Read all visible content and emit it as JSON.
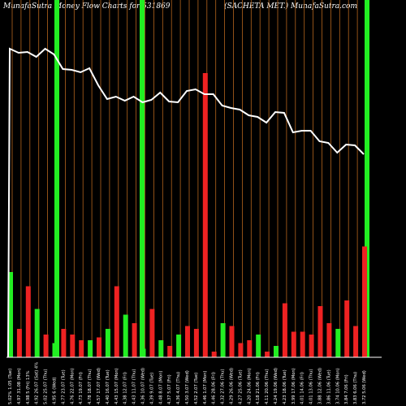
{
  "header": {
    "left": "MunafaSutra Money Flow  Charts for 531869",
    "right": "(SACHETA MET.) MunafaSutra.com"
  },
  "colors": {
    "background": "#000000",
    "up": "#22ee22",
    "down": "#ee2222",
    "gridline": "#b5651d",
    "line": "#ffffff",
    "highlight": "#22ee22",
    "axis": "#ffffff"
  },
  "chart_data": {
    "type": "bar",
    "title": "MunafaSutra Money Flow  Charts for 531869",
    "subtitle": "(SACHETA MET.) MunafaSutra.com",
    "categories": [
      "5.02% 1.05 (Tue)",
      "4.97 31.08 (Mon)",
      "4.98 5 (Fri) 13%",
      "4.92 26.07 (Sat) 4%",
      "5.02 25.07 (Thu)",
      "4.95 6 (Wed)",
      "4.77 23.07 (Tue)",
      "4.76 22.07 (Mon)",
      "4.73 19.07 (Fri)",
      "4.78 18.07 (Thu)",
      "4.57 17.07 (Wed)",
      "4.40 16.07 (Tue)",
      "4.43 15.07 (Mon)",
      "4.38 12.07 (Fri)",
      "4.43 11.07 (Thu)",
      "4.36 10.07 (Wed)",
      "4.39 9.07 (Tue)",
      "4.48 8.07 (Mon)",
      "4.37 5.07 (Fri)",
      "4.36 4.07 (Thu)",
      "4.50 3.07 (Wed)",
      "4.52 2.07 (Tue)",
      "4.46 1.07 (Mon)",
      "4.46 28.06 (Fri)",
      "4.32 27.06 (Thu)",
      "4.29 26.06 (Wed)",
      "4.27 25.06 (Tue)",
      "4.20 24.06 (Mon)",
      "4.18 21.06 (Fri)",
      "4.11 20.06 (Thu)",
      "4.24 19.06 (Wed)",
      "4.23 18.06 (Tue)",
      "3.99 17.06 (Mon)",
      "4.01 14.06 (Fri)",
      "4.01 13.06 (Thu)",
      "3.88 12.06 (Wed)",
      "3.86 11.06 (Tue)",
      "3.74 10.06 (Mon)",
      "3.84 7.06 (Fri)",
      "3.83 6.06 (Thu)",
      "3.72 5.06 (Wed)"
    ],
    "series": [
      {
        "colors": [
          "up",
          "down",
          "down",
          "up",
          "down",
          "up",
          "down",
          "down",
          "down",
          "up",
          "down",
          "up",
          "down",
          "up",
          "down",
          "up",
          "down",
          "up",
          "down",
          "up",
          "down",
          "down",
          "down",
          "down",
          "up",
          "down",
          "down",
          "down",
          "up",
          "down",
          "up",
          "down",
          "down",
          "down",
          "down",
          "down",
          "down",
          "up",
          "down",
          "down",
          "down"
        ],
        "values": [
          30,
          10,
          25,
          17,
          8,
          5,
          10,
          8,
          6,
          6,
          7,
          10,
          25,
          15,
          12,
          3,
          17,
          6,
          4,
          8,
          11,
          10,
          100,
          2,
          12,
          11,
          5,
          6,
          8,
          2,
          4,
          19,
          9,
          9,
          8,
          18,
          12,
          10,
          20,
          11,
          39
        ]
      },
      {
        "name": "price",
        "type": "line",
        "values": [
          5.02,
          4.97,
          4.98,
          4.92,
          5.02,
          4.95,
          4.77,
          4.76,
          4.73,
          4.78,
          4.57,
          4.4,
          4.43,
          4.38,
          4.43,
          4.36,
          4.39,
          4.48,
          4.37,
          4.36,
          4.5,
          4.52,
          4.46,
          4.46,
          4.32,
          4.29,
          4.27,
          4.2,
          4.18,
          4.11,
          4.24,
          4.23,
          3.99,
          4.01,
          4.01,
          3.88,
          3.86,
          3.74,
          3.84,
          3.83,
          3.72
        ]
      }
    ],
    "highlighted_indices": [
      6,
      16,
      42
    ],
    "grid": true,
    "legend": "none",
    "ylim": [
      0,
      100
    ]
  }
}
